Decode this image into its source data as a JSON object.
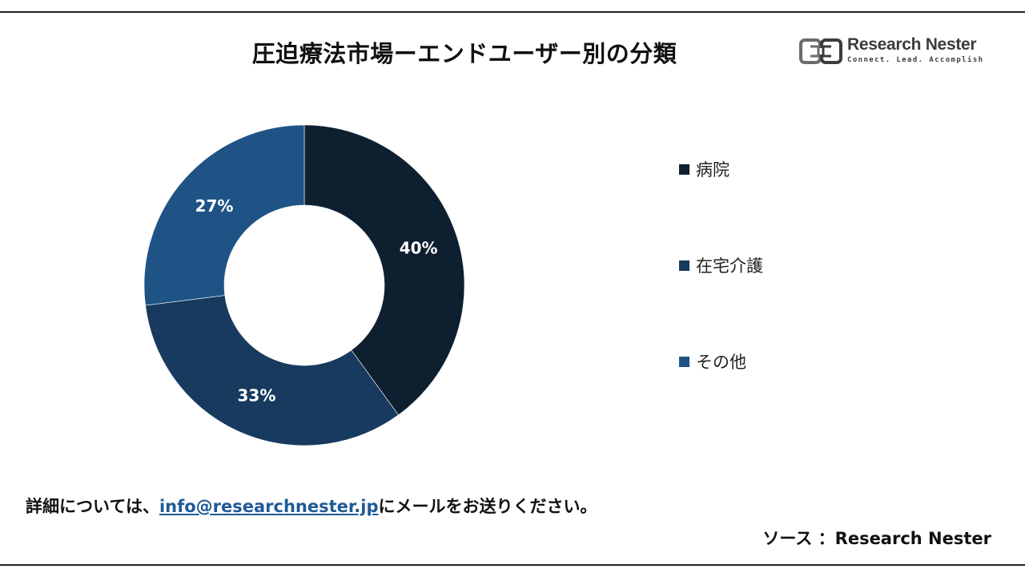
{
  "header": {
    "title": "圧迫療法市場ーエンドユーザー別の分類"
  },
  "logo": {
    "name": "Research Nester",
    "tagline": "Connect. Lead. Accomplish",
    "icon": "research-nester-logo-icon"
  },
  "chart_data": {
    "type": "pie",
    "donut": true,
    "title": "圧迫療法市場ーエンドユーザー別の分類",
    "categories": [
      "病院",
      "在宅介護",
      "その他"
    ],
    "values": [
      40,
      33,
      27
    ],
    "labels": [
      "40%",
      "33%",
      "27%"
    ],
    "colors": [
      "#0e1f30",
      "#173a5e",
      "#1f5386"
    ],
    "legend_position": "right"
  },
  "footer": {
    "prefix": "詳細については、",
    "email": "info@researchnester.jp",
    "suffix": "にメールをお送りください。",
    "source": "ソース ：Research Nester"
  }
}
